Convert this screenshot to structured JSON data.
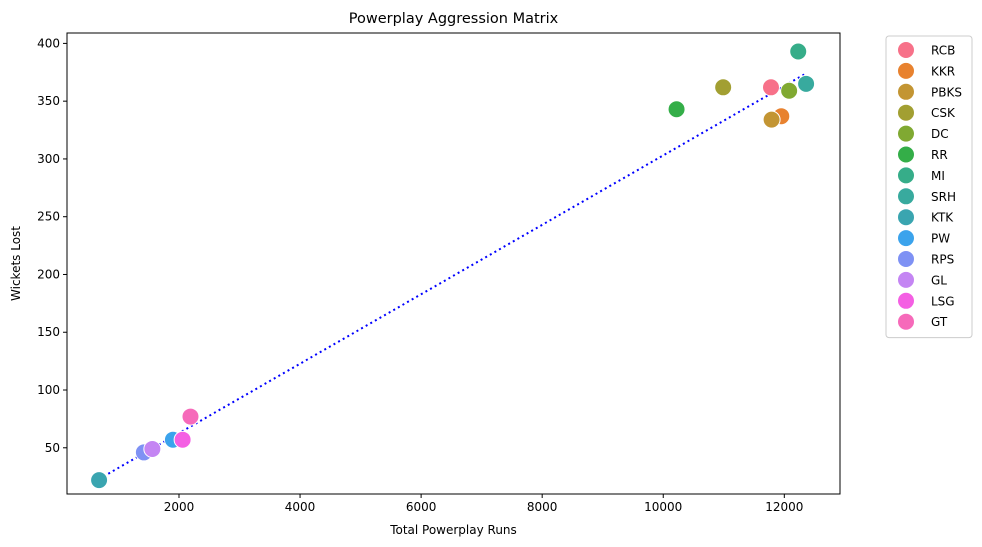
{
  "chart_data": {
    "type": "scatter",
    "title": "Powerplay Aggression Matrix",
    "xlabel": "Total Powerplay Runs",
    "ylabel": "Wickets Lost",
    "xlim": [
      150,
      12920
    ],
    "ylim": [
      10,
      409
    ],
    "xticks": [
      2000,
      4000,
      6000,
      8000,
      10000,
      12000
    ],
    "yticks": [
      50,
      100,
      150,
      200,
      250,
      300,
      350,
      400
    ],
    "grid": false,
    "legend_position": "outside-right",
    "series": [
      {
        "name": "RCB",
        "color": "#f77189",
        "x": 11780,
        "y": 362
      },
      {
        "name": "KKR",
        "color": "#e8822f",
        "x": 11950,
        "y": 337
      },
      {
        "name": "PBKS",
        "color": "#c39533",
        "x": 11790,
        "y": 334
      },
      {
        "name": "CSK",
        "color": "#a29f32",
        "x": 10990,
        "y": 362
      },
      {
        "name": "DC",
        "color": "#80a932",
        "x": 12080,
        "y": 359
      },
      {
        "name": "RR",
        "color": "#34ae48",
        "x": 10220,
        "y": 343
      },
      {
        "name": "MI",
        "color": "#36ad89",
        "x": 12230,
        "y": 393
      },
      {
        "name": "SRH",
        "color": "#38aa9e",
        "x": 12360,
        "y": 365
      },
      {
        "name": "KTK",
        "color": "#3aa5b0",
        "x": 680,
        "y": 22
      },
      {
        "name": "PW",
        "color": "#3ba3ec",
        "x": 1900,
        "y": 57
      },
      {
        "name": "RPS",
        "color": "#7e91f4",
        "x": 1420,
        "y": 46
      },
      {
        "name": "GL",
        "color": "#c485f3",
        "x": 1560,
        "y": 49
      },
      {
        "name": "LSG",
        "color": "#f45fe3",
        "x": 2060,
        "y": 57
      },
      {
        "name": "GT",
        "color": "#f66aba",
        "x": 2190,
        "y": 77
      }
    ],
    "trendline": {
      "style": "dotted",
      "color": "#0000ff",
      "x": [
        680,
        12360
      ],
      "y": [
        23,
        374
      ]
    }
  }
}
